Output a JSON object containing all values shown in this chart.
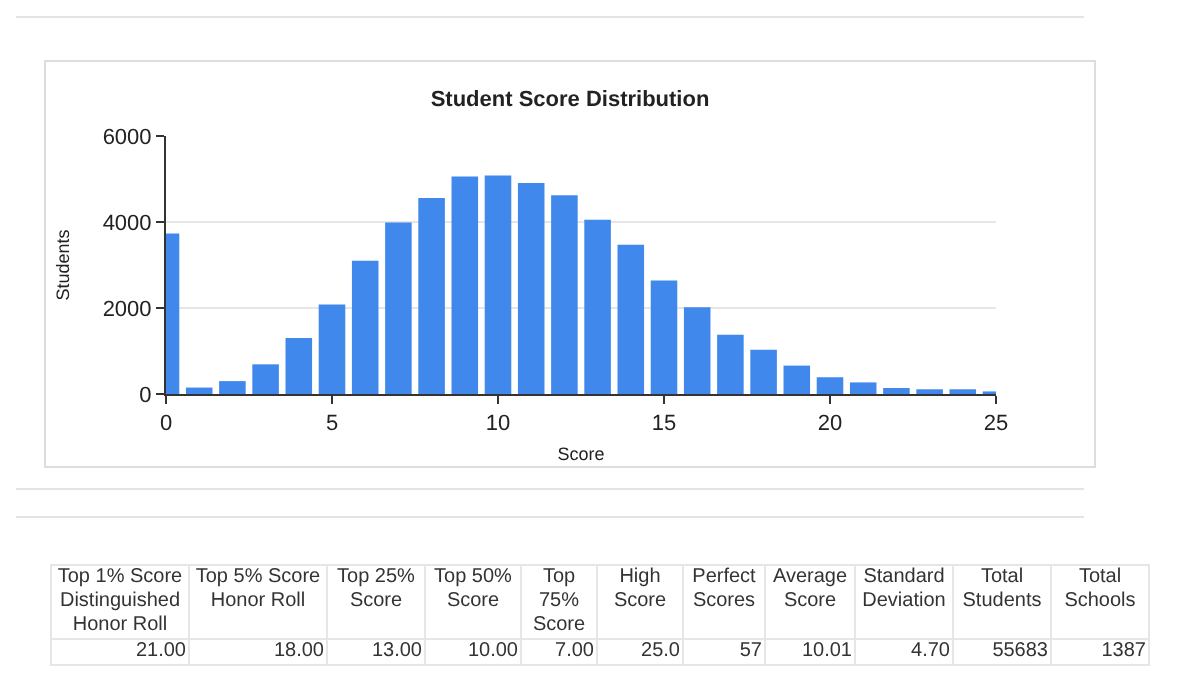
{
  "chart_data": {
    "type": "bar",
    "title": "Student Score Distribution",
    "xlabel": "Score",
    "ylabel": "Students",
    "x": [
      0,
      1,
      2,
      3,
      4,
      5,
      6,
      7,
      8,
      9,
      10,
      11,
      12,
      13,
      14,
      15,
      16,
      17,
      18,
      19,
      20,
      21,
      22,
      23,
      24,
      25
    ],
    "values": [
      3730,
      150,
      300,
      690,
      1300,
      2080,
      3100,
      3990,
      4560,
      5060,
      5080,
      4910,
      4620,
      4050,
      3470,
      2640,
      2020,
      1380,
      1030,
      660,
      390,
      270,
      140,
      110,
      110,
      60
    ],
    "color": "#4088ec",
    "xlim": [
      0,
      25
    ],
    "xticks": [
      0,
      5,
      10,
      15,
      20,
      25
    ],
    "ylim": [
      0,
      6000
    ],
    "yticks": [
      0,
      2000,
      4000,
      6000
    ],
    "grid": "y",
    "annotations": [
      "Top 1% Score Distinguished Honor Roll",
      "Top 5% Score Honor Roll",
      "Top 25% Score",
      "Top 50% Score",
      "Top 75% Score",
      "High Score",
      "Perfect Scores",
      "Average Score",
      "Standard Deviation",
      "Total Students",
      "Total Schools",
      "21.00",
      "18.00",
      "13.00",
      "10.00",
      "7.00",
      "25.0",
      "57",
      "10.01",
      "4.70",
      "55683",
      "1387"
    ]
  }
}
